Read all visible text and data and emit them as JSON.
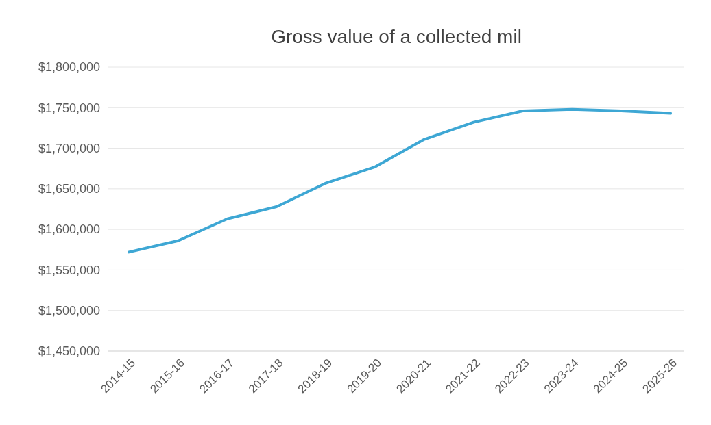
{
  "chart_data": {
    "type": "line",
    "title": "Gross value of a collected mil",
    "categories": [
      "2014-15",
      "2015-16",
      "2016-17",
      "2017-18",
      "2018-19",
      "2019-20",
      "2020-21",
      "2021-22",
      "2022-23",
      "2023-24",
      "2024-25",
      "2025-26"
    ],
    "series": [
      {
        "color": "#3ea7d4",
        "values": [
          1572000,
          1586000,
          1613000,
          1628000,
          1657000,
          1677000,
          1711000,
          1732000,
          1746000,
          1748000,
          1746000,
          1743000
        ]
      }
    ],
    "ylim": [
      1450000,
      1800000
    ],
    "yticks": [
      {
        "value": 1450000,
        "label": "$1,450,000"
      },
      {
        "value": 1500000,
        "label": "$1,500,000"
      },
      {
        "value": 1550000,
        "label": "$1,550,000"
      },
      {
        "value": 1600000,
        "label": "$1,600,000"
      },
      {
        "value": 1650000,
        "label": "$1,650,000"
      },
      {
        "value": 1700000,
        "label": "$1,700,000"
      },
      {
        "value": 1750000,
        "label": "$1,750,000"
      },
      {
        "value": 1800000,
        "label": "$1,800,000"
      }
    ],
    "grid": "y",
    "marker": "none",
    "line_style": "solid"
  }
}
